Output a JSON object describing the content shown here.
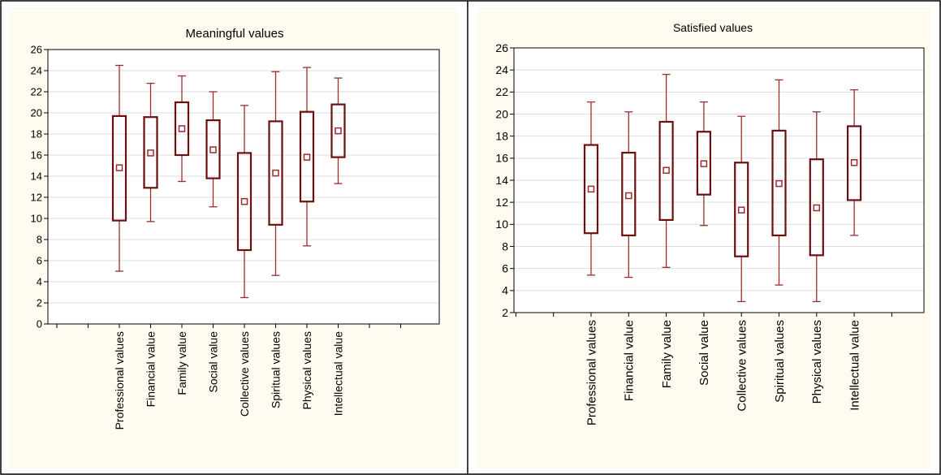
{
  "chart_data": [
    {
      "type": "box",
      "title": "Meaningful values",
      "ylim": [
        0,
        26
      ],
      "yticks": [
        0,
        2,
        4,
        6,
        8,
        10,
        12,
        14,
        16,
        18,
        20,
        22,
        24,
        26
      ],
      "grid": true,
      "categories": [
        "Professional values",
        "Financial value",
        "Family value",
        "Social value",
        "Collective values",
        "Spiritual values",
        "Physical values",
        "Intellectual value"
      ],
      "boxes": [
        {
          "whisker_low": 5.0,
          "q1": 9.8,
          "mean": 14.8,
          "q3": 19.7,
          "whisker_high": 24.5
        },
        {
          "whisker_low": 9.7,
          "q1": 12.9,
          "mean": 16.2,
          "q3": 19.6,
          "whisker_high": 22.8
        },
        {
          "whisker_low": 13.5,
          "q1": 16.0,
          "mean": 18.5,
          "q3": 21.0,
          "whisker_high": 23.5
        },
        {
          "whisker_low": 11.1,
          "q1": 13.8,
          "mean": 16.5,
          "q3": 19.3,
          "whisker_high": 22.0
        },
        {
          "whisker_low": 2.5,
          "q1": 7.0,
          "mean": 11.6,
          "q3": 16.2,
          "whisker_high": 20.7
        },
        {
          "whisker_low": 4.6,
          "q1": 9.4,
          "mean": 14.3,
          "q3": 19.2,
          "whisker_high": 23.9
        },
        {
          "whisker_low": 7.4,
          "q1": 11.6,
          "mean": 15.8,
          "q3": 20.1,
          "whisker_high": 24.3
        },
        {
          "whisker_low": 13.3,
          "q1": 15.8,
          "mean": 18.3,
          "q3": 20.8,
          "whisker_high": 23.3
        }
      ]
    },
    {
      "type": "box",
      "title": "Satisfied values",
      "ylim": [
        2,
        26
      ],
      "yticks": [
        2,
        4,
        6,
        8,
        10,
        12,
        14,
        16,
        18,
        20,
        22,
        24,
        26
      ],
      "grid": true,
      "categories": [
        "Professional values",
        "Financial value",
        "Family value",
        "Social value",
        "Collective values",
        "Spiritual values",
        "Physical values",
        "Intellectual value"
      ],
      "boxes": [
        {
          "whisker_low": 5.4,
          "q1": 9.2,
          "mean": 13.2,
          "q3": 17.2,
          "whisker_high": 21.1
        },
        {
          "whisker_low": 5.2,
          "q1": 9.0,
          "mean": 12.6,
          "q3": 16.5,
          "whisker_high": 20.2
        },
        {
          "whisker_low": 6.1,
          "q1": 10.4,
          "mean": 14.9,
          "q3": 19.3,
          "whisker_high": 23.6
        },
        {
          "whisker_low": 9.9,
          "q1": 12.7,
          "mean": 15.5,
          "q3": 18.4,
          "whisker_high": 21.1
        },
        {
          "whisker_low": 3.0,
          "q1": 7.1,
          "mean": 11.3,
          "q3": 15.6,
          "whisker_high": 19.8
        },
        {
          "whisker_low": 4.5,
          "q1": 9.0,
          "mean": 13.7,
          "q3": 18.5,
          "whisker_high": 23.1
        },
        {
          "whisker_low": 3.0,
          "q1": 7.2,
          "mean": 11.5,
          "q3": 15.9,
          "whisker_high": 20.2
        },
        {
          "whisker_low": 9.0,
          "q1": 12.2,
          "mean": 15.6,
          "q3": 18.9,
          "whisker_high": 22.2
        }
      ]
    }
  ],
  "colors": {
    "panel_bg": "#fffbf0",
    "plot_bg": "#ffffff",
    "box_stroke": "#6b0f0f",
    "whisker": "#9b2c2c",
    "mean_marker": "#9b2c2c",
    "grid": "#dddddd"
  }
}
